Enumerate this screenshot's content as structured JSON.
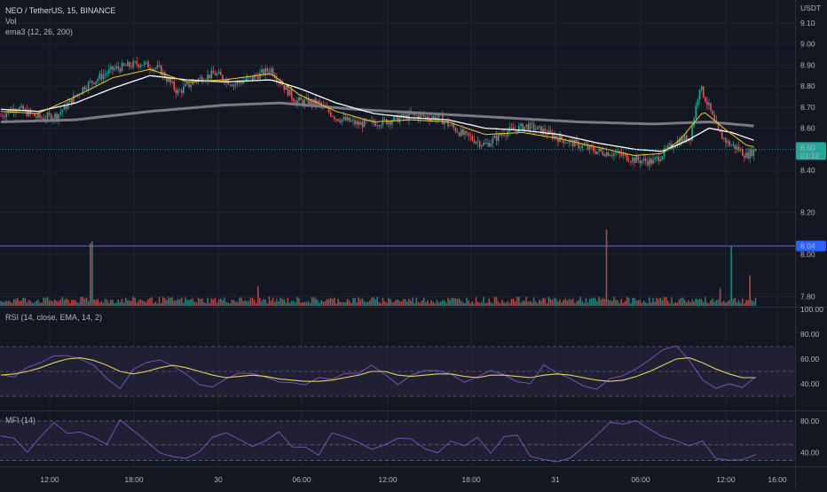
{
  "header": {
    "symbol_line": "NEO / TetherUS, 15, BINANCE",
    "vol_label": "Vol",
    "ema_label": "ema3 (12, 26, 200)",
    "currency": "USDT"
  },
  "colors": {
    "background": "#131722",
    "grid": "#1f2430",
    "up": "#26a69a",
    "down": "#ef5350",
    "ema_fast": "#f0c929",
    "ema_mid": "#ffffff",
    "ema_slow": "#787b86",
    "hline": "#2962ff",
    "last_price_box": "#26a69a",
    "rsi_line": "#7e57c2",
    "rsi_ma": "#e6d05c",
    "rsi_band": "#2a2540",
    "mfi_line": "#7e57c2",
    "mfi_band": "#2a2540"
  },
  "chart_data": [
    {
      "type": "candlestick",
      "title": "NEO / TetherUS, 15, BINANCE",
      "price_axis_label": "USDT",
      "price_ticks": [
        "9.10",
        "9.00",
        "8.90",
        "8.80",
        "8.70",
        "8.60",
        "8.40",
        "8.20",
        "8.00",
        "7.80"
      ],
      "ylim": [
        7.78,
        9.15
      ],
      "time_ticks": [
        "12:00",
        "18:00",
        "30",
        "06:00",
        "12:00",
        "18:00",
        "31",
        "06:00",
        "12:00",
        "16:00"
      ],
      "last_price": "8.50",
      "countdown": "01:12",
      "hline_value": "8.04",
      "price_path": [
        [
          0,
          8.66
        ],
        [
          8,
          8.7
        ],
        [
          20,
          8.65
        ],
        [
          30,
          8.66
        ],
        [
          45,
          8.8
        ],
        [
          60,
          8.88
        ],
        [
          75,
          8.91
        ],
        [
          85,
          8.88
        ],
        [
          95,
          8.77
        ],
        [
          105,
          8.83
        ],
        [
          115,
          8.86
        ],
        [
          125,
          8.81
        ],
        [
          135,
          8.84
        ],
        [
          145,
          8.88
        ],
        [
          150,
          8.82
        ],
        [
          158,
          8.73
        ],
        [
          170,
          8.72
        ],
        [
          180,
          8.65
        ],
        [
          192,
          8.62
        ],
        [
          205,
          8.63
        ],
        [
          220,
          8.66
        ],
        [
          235,
          8.65
        ],
        [
          248,
          8.57
        ],
        [
          260,
          8.52
        ],
        [
          270,
          8.58
        ],
        [
          282,
          8.61
        ],
        [
          290,
          8.59
        ],
        [
          300,
          8.55
        ],
        [
          310,
          8.52
        ],
        [
          320,
          8.49
        ],
        [
          330,
          8.48
        ],
        [
          340,
          8.45
        ],
        [
          350,
          8.44
        ],
        [
          362,
          8.53
        ],
        [
          370,
          8.56
        ],
        [
          375,
          8.8
        ],
        [
          380,
          8.7
        ],
        [
          385,
          8.58
        ],
        [
          390,
          8.53
        ],
        [
          396,
          8.5
        ],
        [
          400,
          8.47
        ],
        [
          405,
          8.5
        ]
      ],
      "ema_fast_path": [
        [
          0,
          8.68
        ],
        [
          20,
          8.67
        ],
        [
          40,
          8.75
        ],
        [
          60,
          8.84
        ],
        [
          80,
          8.88
        ],
        [
          100,
          8.82
        ],
        [
          120,
          8.83
        ],
        [
          145,
          8.86
        ],
        [
          160,
          8.76
        ],
        [
          180,
          8.68
        ],
        [
          200,
          8.63
        ],
        [
          220,
          8.64
        ],
        [
          240,
          8.63
        ],
        [
          260,
          8.57
        ],
        [
          280,
          8.58
        ],
        [
          300,
          8.55
        ],
        [
          320,
          8.51
        ],
        [
          340,
          8.47
        ],
        [
          355,
          8.48
        ],
        [
          365,
          8.55
        ],
        [
          377,
          8.68
        ],
        [
          388,
          8.6
        ],
        [
          400,
          8.52
        ],
        [
          405,
          8.51
        ]
      ],
      "ema_mid_path": [
        [
          0,
          8.69
        ],
        [
          20,
          8.68
        ],
        [
          40,
          8.72
        ],
        [
          60,
          8.79
        ],
        [
          80,
          8.85
        ],
        [
          100,
          8.83
        ],
        [
          120,
          8.82
        ],
        [
          145,
          8.83
        ],
        [
          160,
          8.79
        ],
        [
          180,
          8.72
        ],
        [
          200,
          8.67
        ],
        [
          220,
          8.65
        ],
        [
          240,
          8.64
        ],
        [
          260,
          8.6
        ],
        [
          280,
          8.59
        ],
        [
          300,
          8.57
        ],
        [
          320,
          8.53
        ],
        [
          340,
          8.5
        ],
        [
          355,
          8.49
        ],
        [
          368,
          8.54
        ],
        [
          380,
          8.6
        ],
        [
          392,
          8.58
        ],
        [
          405,
          8.54
        ]
      ],
      "ema_slow_path": [
        [
          0,
          8.63
        ],
        [
          40,
          8.64
        ],
        [
          80,
          8.68
        ],
        [
          120,
          8.71
        ],
        [
          150,
          8.72
        ],
        [
          190,
          8.69
        ],
        [
          230,
          8.67
        ],
        [
          270,
          8.65
        ],
        [
          310,
          8.63
        ],
        [
          350,
          8.62
        ],
        [
          380,
          8.63
        ],
        [
          405,
          8.61
        ]
      ],
      "volume_ylim": [
        0,
        1
      ],
      "volume_spikes": [
        {
          "at": 48,
          "value": 0.82,
          "dir": "down"
        },
        {
          "at": 49,
          "value": 0.85,
          "dir": "up"
        },
        {
          "at": 138,
          "value": 0.26,
          "dir": "down"
        },
        {
          "at": 325,
          "value": 1.0,
          "dir": "down"
        },
        {
          "at": 386,
          "value": 0.23,
          "dir": "down"
        },
        {
          "at": 392,
          "value": 0.78,
          "dir": "up"
        },
        {
          "at": 402,
          "value": 0.4,
          "dir": "down"
        }
      ]
    },
    {
      "type": "line",
      "title": "RSI (14, close, EMA, 14, 2)",
      "ylim": [
        20,
        100
      ],
      "ticks": [
        "100.00",
        "80.00",
        "60.00",
        "40.00"
      ],
      "bands": [
        30,
        50,
        70
      ],
      "series": [
        {
          "name": "RSI",
          "values": [
            48,
            46,
            52,
            57,
            61,
            63,
            59,
            56,
            44,
            36,
            52,
            56,
            60,
            53,
            47,
            40,
            38,
            44,
            50,
            47,
            45,
            40,
            42,
            39,
            45,
            44,
            48,
            50,
            56,
            48,
            38,
            46,
            52,
            50,
            47,
            42,
            45,
            51,
            48,
            42,
            41,
            55,
            50,
            44,
            38,
            36,
            43,
            46,
            52,
            59,
            68,
            72,
            60,
            42,
            37,
            39,
            36,
            45
          ]
        },
        {
          "name": "RSI MA",
          "values": [
            47,
            48,
            50,
            53,
            57,
            60,
            61,
            59,
            55,
            50,
            48,
            50,
            53,
            55,
            53,
            50,
            47,
            45,
            46,
            47,
            46,
            44,
            43,
            42,
            42,
            43,
            45,
            47,
            50,
            50,
            47,
            46,
            47,
            48,
            48,
            46,
            45,
            47,
            47,
            46,
            45,
            47,
            48,
            47,
            45,
            43,
            42,
            43,
            46,
            50,
            55,
            60,
            61,
            57,
            52,
            48,
            45,
            45
          ]
        }
      ]
    },
    {
      "type": "line",
      "title": "MFI (14)",
      "ylim": [
        25,
        90
      ],
      "ticks": [
        "80.00",
        "40.00"
      ],
      "bands": [
        30,
        50,
        80
      ],
      "series": [
        {
          "name": "MFI",
          "values": [
            62,
            58,
            40,
            60,
            78,
            64,
            66,
            58,
            52,
            82,
            68,
            55,
            40,
            35,
            32,
            42,
            60,
            64,
            58,
            48,
            56,
            66,
            48,
            46,
            38,
            66,
            60,
            52,
            44,
            50,
            58,
            56,
            46,
            40,
            54,
            50,
            58,
            40,
            60,
            62,
            34,
            30,
            28,
            34,
            46,
            62,
            78,
            76,
            80,
            70,
            60,
            55,
            50,
            56,
            32,
            29,
            30,
            38
          ]
        }
      ]
    }
  ]
}
